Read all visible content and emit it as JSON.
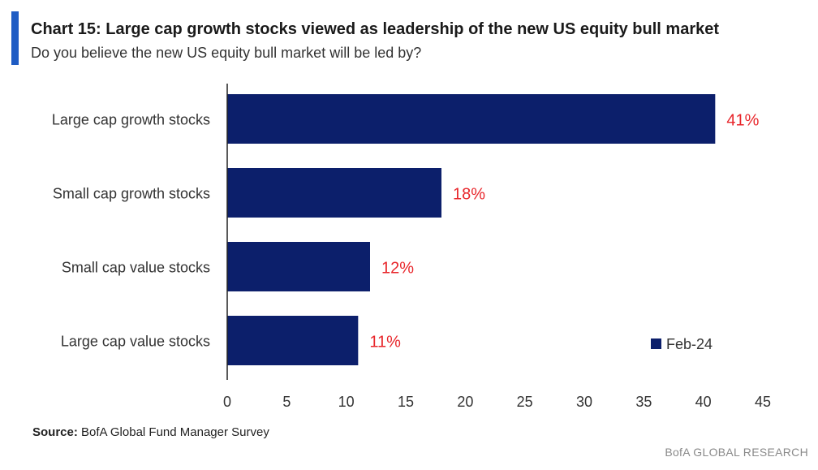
{
  "chart_data": {
    "type": "bar",
    "orientation": "horizontal",
    "title": "Chart 15: Large cap growth stocks viewed as leadership of the new US equity bull market",
    "subtitle": "Do you believe the new US equity bull market will be led by?",
    "categories": [
      "Large cap growth stocks",
      "Small cap growth stocks",
      "Small cap value stocks",
      "Large cap value stocks"
    ],
    "series": [
      {
        "name": "Feb-24",
        "values": [
          41,
          18,
          12,
          11
        ],
        "labels": [
          "41%",
          "18%",
          "12%",
          "11%"
        ]
      }
    ],
    "xlim": [
      0,
      45
    ],
    "xticks": [
      0,
      5,
      10,
      15,
      20,
      25,
      30,
      35,
      40,
      45
    ],
    "grid": false,
    "legend_position": "bottom-right"
  },
  "colors": {
    "bar": "#0c1f6b",
    "data_label": "#e8262b",
    "accent": "#1f5cc4",
    "axis": "#222222"
  },
  "footer": {
    "source_label": "Source:",
    "source_text": "BofA Global Fund Manager Survey",
    "brand": "BofA GLOBAL RESEARCH"
  }
}
